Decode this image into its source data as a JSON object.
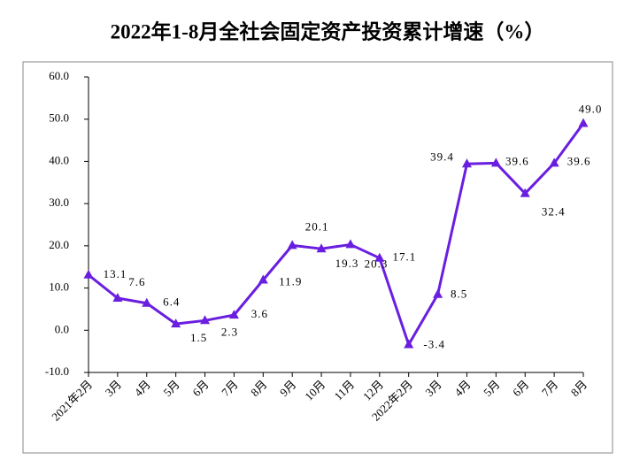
{
  "chart_data": {
    "type": "line",
    "title": "2022年1-8月全社会固定资产投资累计增速（%）",
    "categories": [
      "2021年2月",
      "3月",
      "4月",
      "5月",
      "6月",
      "7月",
      "8月",
      "9月",
      "10月",
      "11月",
      "12月",
      "2022年2月",
      "3月",
      "4月",
      "5月",
      "6月",
      "7月",
      "8月"
    ],
    "values": [
      13.1,
      7.6,
      6.4,
      1.5,
      2.3,
      3.6,
      11.9,
      20.1,
      19.3,
      20.3,
      17.1,
      -3.4,
      8.5,
      39.4,
      39.6,
      32.4,
      39.6,
      49.0
    ],
    "value_labels": [
      "13.1",
      "7.6",
      "6.4",
      "1.5",
      "2.3",
      "3.6",
      "11.9",
      "20.1",
      "19.3",
      "20.3",
      "17.1",
      "-3.4",
      "8.5",
      "39.4",
      "39.6",
      "32.4",
      "39.6",
      "49.0"
    ],
    "color": "#6a1ee0",
    "ylim": [
      -10,
      60
    ],
    "yticks": [
      {
        "value": -10,
        "label": "-10.0"
      },
      {
        "value": 0,
        "label": "0.0"
      },
      {
        "value": 10,
        "label": "10.0"
      },
      {
        "value": 20,
        "label": "20.0"
      },
      {
        "value": 30,
        "label": "30.0"
      },
      {
        "value": 40,
        "label": "40.0"
      },
      {
        "value": 50,
        "label": "50.0"
      },
      {
        "value": 60,
        "label": "60.0"
      }
    ],
    "grid": false
  }
}
